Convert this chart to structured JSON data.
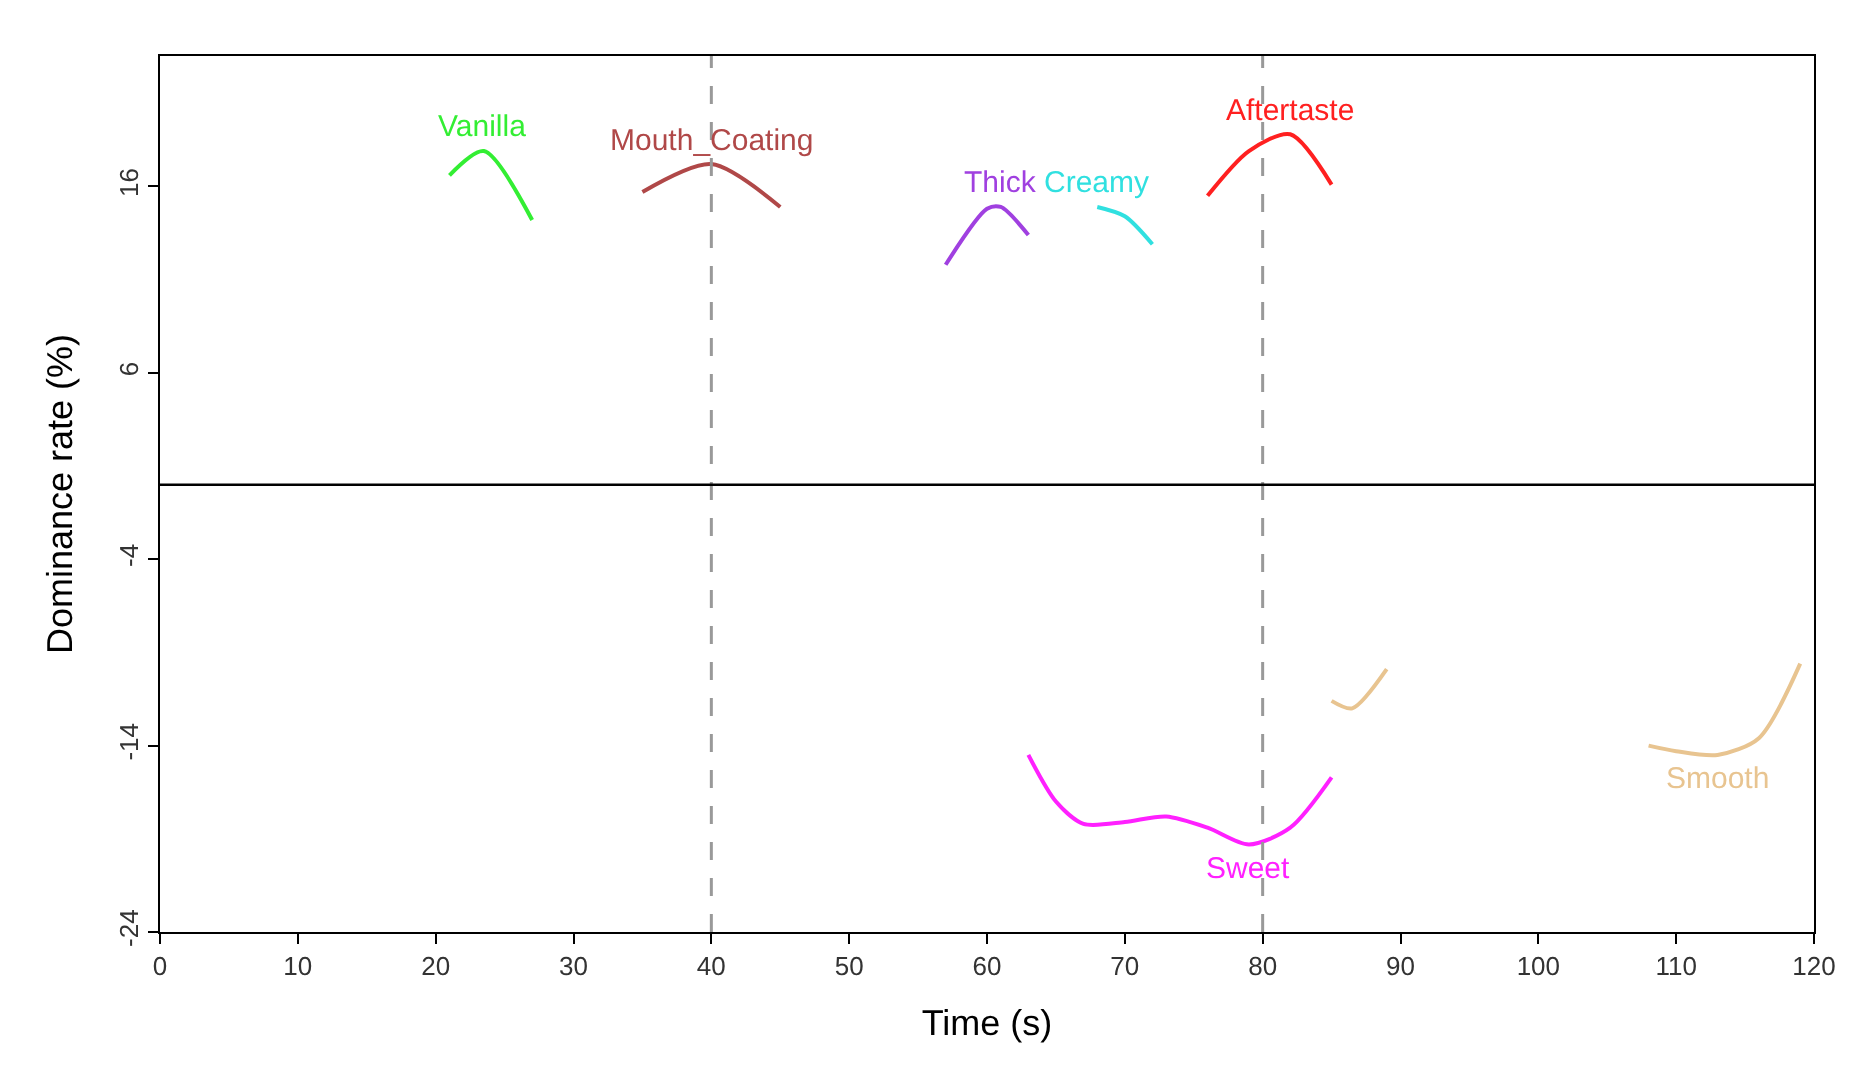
{
  "chart_data": {
    "type": "line",
    "xlabel": "Time (s)",
    "ylabel": "Dominance rate (%)",
    "xlim": [
      0,
      120
    ],
    "xticks": [
      0,
      10,
      20,
      30,
      40,
      50,
      60,
      70,
      80,
      90,
      100,
      110,
      120
    ],
    "ylim": [
      -24,
      23
    ],
    "yticks": [
      -24,
      -14,
      -4,
      6,
      16
    ],
    "legend": false,
    "line_style": "solid",
    "marker": "none",
    "ref_lines": [
      {
        "axis": "x",
        "value": 40,
        "color": "#999999",
        "line_style": "dashed"
      },
      {
        "axis": "x",
        "value": 80,
        "color": "#999999",
        "line_style": "dashed"
      },
      {
        "axis": "y",
        "value": 0,
        "color": "#000000",
        "line_style": "solid"
      }
    ],
    "series": [
      {
        "name": "Vanilla",
        "color": "#33ee33",
        "x": [
          21,
          23.5,
          27
        ],
        "values": [
          16.6,
          17.9,
          14.2
        ]
      },
      {
        "name": "Mouth_Coating",
        "color": "#b04848",
        "x": [
          35,
          40,
          45
        ],
        "values": [
          15.7,
          17.2,
          14.9
        ]
      },
      {
        "name": "Thick",
        "color": "#a040e0",
        "x": [
          57,
          60,
          61,
          63
        ],
        "values": [
          11.8,
          14.8,
          14.9,
          13.4
        ]
      },
      {
        "name": "Creamy",
        "color": "#30e0e0",
        "x": [
          68,
          70,
          72
        ],
        "values": [
          14.9,
          14.4,
          12.9
        ]
      },
      {
        "name": "Aftertaste",
        "color": "#ff2020",
        "x": [
          76,
          79,
          82,
          85
        ],
        "values": [
          15.5,
          17.9,
          18.8,
          16.1
        ]
      },
      {
        "name": "Sweet",
        "color": "#ff20ff",
        "x": [
          63,
          65,
          67,
          70,
          73,
          76,
          79,
          82,
          85
        ],
        "values": [
          -14.5,
          -17.0,
          -18.2,
          -18.1,
          -17.8,
          -18.4,
          -19.3,
          -18.4,
          -15.7
        ]
      },
      {
        "name": "Smooth",
        "color": "#e8c490",
        "x": [
          85,
          86.5,
          89,
          98,
          108,
          110,
          113,
          116,
          119
        ],
        "values": [
          -11.6,
          -12.0,
          -9.9,
          null,
          -14.0,
          -14.3,
          -14.5,
          -13.6,
          -9.6
        ]
      }
    ]
  }
}
